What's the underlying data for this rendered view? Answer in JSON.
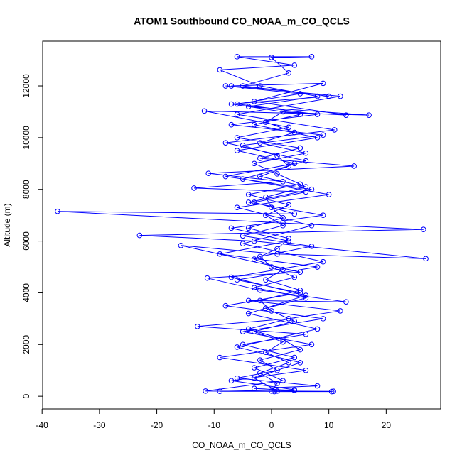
{
  "chart_data": {
    "type": "line",
    "title": "ATOM1 Southbound CO_NOAA_m_CO_QCLS",
    "x_label": "CO_NOAA_m_CO_QCLS",
    "y_label": "Altitude (m)",
    "color": "#0000ff",
    "xlim": [
      -39.9,
      29.5
    ],
    "ylim": [
      -490,
      13730
    ],
    "xticks": [
      -40,
      -30,
      -20,
      -10,
      0,
      10,
      20
    ],
    "yticks": [
      0,
      2000,
      4000,
      6000,
      8000,
      10000,
      12000
    ],
    "x": [
      0.5,
      10.5,
      -11.5,
      2,
      -3,
      4,
      -5,
      6,
      -12.9,
      3,
      12,
      -4,
      13,
      -2,
      -11.2,
      5,
      -15.8,
      1,
      26.9,
      -3,
      -23,
      26.5,
      2,
      -37.3,
      4,
      -3,
      6,
      -13.5,
      2,
      -11,
      14.4,
      -2,
      5,
      -6,
      3,
      -11.7,
      17,
      -4,
      8,
      -2,
      -9,
      4,
      -6,
      7,
      0,
      3,
      -5,
      10,
      -7,
      5,
      -3,
      8,
      -6,
      4,
      -8,
      7,
      -4,
      9,
      -7,
      3,
      -9,
      8,
      -6,
      5,
      -8,
      9,
      -5,
      7,
      -9,
      6,
      -7,
      4,
      -9,
      10.8,
      1,
      -3,
      5,
      -6,
      8,
      -4,
      6,
      -7,
      9,
      -5,
      7,
      -6,
      10,
      -5,
      6,
      -8,
      11,
      -6,
      12,
      -7,
      9,
      -3,
      13,
      2,
      -1,
      4,
      -2,
      6,
      -3,
      1,
      5,
      -4,
      3,
      -1,
      2,
      -5,
      7,
      -2,
      0,
      4,
      -3,
      6,
      -1,
      3,
      -4,
      2,
      5,
      -2,
      1,
      -6,
      8,
      -3,
      4,
      0,
      1,
      -2,
      3,
      -1,
      2,
      -3,
      4,
      0,
      -2,
      5,
      -1,
      2,
      -3,
      1,
      3,
      -4,
      2,
      0,
      -1,
      6,
      -2,
      3,
      1,
      -5,
      9,
      -7,
      8,
      -6,
      5,
      -8
    ],
    "values": [
      180,
      180,
      200,
      600,
      1100,
      1500,
      2000,
      2400,
      2700,
      3000,
      3300,
      3700,
      3650,
      4100,
      4570,
      4800,
      5830,
      5500,
      5320,
      6000,
      6220,
      6450,
      6700,
      7150,
      7050,
      7500,
      7900,
      8050,
      8300,
      8620,
      8900,
      9200,
      9600,
      10000,
      10400,
      11030,
      10870,
      11200,
      11600,
      12000,
      12620,
      12800,
      13130,
      13130,
      13100,
      12500,
      12000,
      11600,
      11300,
      10900,
      10500,
      10000,
      9500,
      9000,
      8500,
      8000,
      7500,
      7000,
      6500,
      6000,
      5500,
      5000,
      4500,
      4000,
      3500,
      3000,
      2500,
      2000,
      1500,
      1000,
      600,
      250,
      190,
      190,
      200,
      700,
      1300,
      1900,
      2600,
      3200,
      3900,
      4600,
      5200,
      5900,
      6600,
      7300,
      7800,
      8400,
      9100,
      9800,
      10300,
      10900,
      11600,
      12000,
      12100,
      11400,
      10870,
      11000,
      10600,
      10200,
      9800,
      9400,
      9000,
      8600,
      8200,
      7800,
      7400,
      7000,
      6600,
      6200,
      5800,
      5400,
      5000,
      4600,
      4200,
      3800,
      3400,
      3000,
      2600,
      2200,
      1800,
      1400,
      1000,
      700,
      400,
      300,
      220,
      200,
      500,
      900,
      1300,
      1700,
      2100,
      2500,
      2900,
      3300,
      3700,
      4100,
      4500,
      4900,
      5300,
      5700,
      6100,
      6500,
      6900,
      7300,
      7700,
      8100,
      8500,
      8900,
      9300,
      9700,
      10100,
      10500,
      10900,
      11300,
      11700,
      12000
    ]
  }
}
